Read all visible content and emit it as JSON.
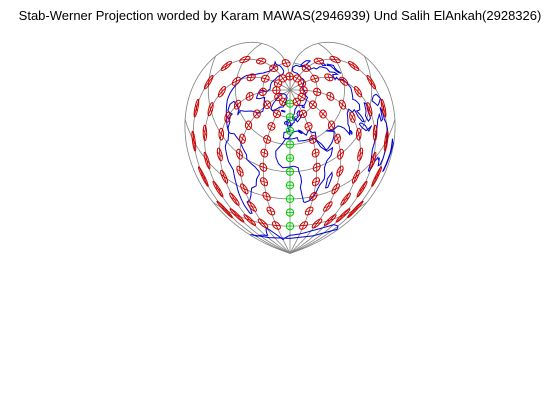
{
  "figure": {
    "title": "Stab-Werner Projection worded by Karam MAWAS(2946939) Und Salih ElAnkah(2928326)"
  },
  "map": {
    "projection": "Stab-Werner",
    "graticule_color": "#808080",
    "coastline_color": "#0000cc",
    "tissot_color": "#cc0000",
    "highlight_color": "#00cc00",
    "meridians_deg": [
      -180,
      -150,
      -120,
      -90,
      -60,
      -30,
      0,
      30,
      60,
      90,
      120,
      150,
      180
    ],
    "parallels_deg": [
      -60,
      -30,
      0,
      30,
      60
    ]
  }
}
